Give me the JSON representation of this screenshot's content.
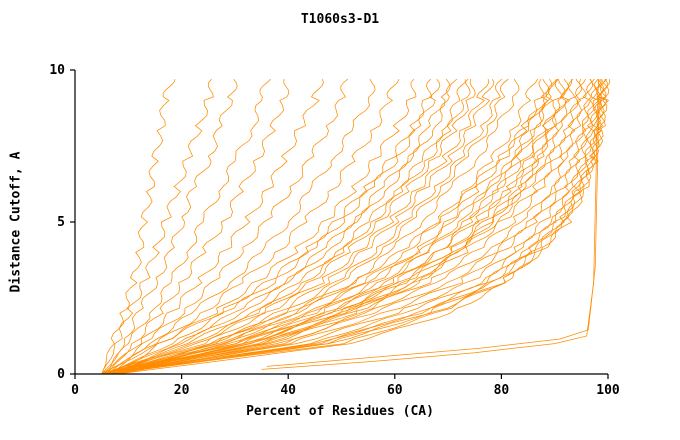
{
  "chart_data": {
    "type": "line",
    "title": "T1060s3-D1",
    "xlabel": "Percent of Residues (CA)",
    "ylabel": "Distance Cutoff, A",
    "xlim": [
      0,
      100
    ],
    "ylim": [
      0,
      10
    ],
    "xticks": [
      0,
      20,
      40,
      60,
      80,
      100
    ],
    "yticks": [
      0,
      5,
      10
    ],
    "grid": false,
    "legend": "none",
    "line_color": "#FF8C00",
    "axis_color": "#000000",
    "y_levels": [
      0,
      1,
      2,
      3,
      4,
      5,
      6,
      7,
      8,
      9,
      9.7
    ],
    "series_x": [
      [
        5,
        7,
        9,
        11,
        12,
        13,
        14,
        15,
        16,
        17,
        18
      ],
      [
        5,
        8,
        10,
        13,
        15,
        17,
        19,
        21,
        23,
        25,
        26
      ],
      [
        6,
        9,
        12,
        15,
        18,
        20,
        22,
        25,
        27,
        29,
        30
      ],
      [
        5,
        10,
        14,
        18,
        21,
        24,
        27,
        30,
        33,
        35,
        36
      ],
      [
        6,
        11,
        16,
        20,
        24,
        28,
        31,
        34,
        37,
        39,
        40
      ],
      [
        5,
        12,
        18,
        23,
        28,
        32,
        36,
        39,
        42,
        45,
        46
      ],
      [
        7,
        13,
        20,
        26,
        31,
        36,
        40,
        44,
        47,
        50,
        51
      ],
      [
        6,
        14,
        22,
        29,
        35,
        40,
        44,
        48,
        52,
        55,
        56
      ],
      [
        5,
        15,
        24,
        31,
        38,
        43,
        48,
        52,
        56,
        59,
        60
      ],
      [
        8,
        16,
        26,
        34,
        41,
        47,
        52,
        56,
        60,
        63,
        64
      ],
      [
        6,
        18,
        28,
        37,
        44,
        50,
        55,
        60,
        64,
        67,
        68
      ],
      [
        7,
        20,
        31,
        40,
        47,
        53,
        58,
        63,
        67,
        70,
        71
      ],
      [
        5,
        22,
        34,
        43,
        50,
        56,
        61,
        66,
        70,
        73,
        74
      ],
      [
        6,
        24,
        36,
        46,
        53,
        59,
        64,
        69,
        73,
        76,
        77
      ],
      [
        8,
        26,
        39,
        49,
        56,
        62,
        67,
        72,
        76,
        79,
        80
      ],
      [
        5,
        28,
        42,
        52,
        59,
        65,
        70,
        75,
        79,
        82,
        83
      ],
      [
        7,
        30,
        44,
        54,
        62,
        68,
        73,
        78,
        82,
        85,
        86
      ],
      [
        6,
        32,
        46,
        56,
        64,
        70,
        75,
        80,
        84,
        87,
        88
      ],
      [
        5,
        25,
        40,
        52,
        61,
        68,
        74,
        79,
        84,
        88,
        89
      ],
      [
        6,
        27,
        43,
        55,
        64,
        71,
        77,
        82,
        86,
        89,
        90
      ],
      [
        7,
        29,
        45,
        57,
        66,
        73,
        79,
        84,
        88,
        91,
        91.5
      ],
      [
        5,
        31,
        47,
        59,
        68,
        75,
        81,
        86,
        89,
        92,
        92.5
      ],
      [
        6,
        33,
        49,
        61,
        70,
        77,
        83,
        87,
        90,
        93,
        93.5
      ],
      [
        8,
        35,
        51,
        63,
        72,
        79,
        84,
        88,
        91,
        94,
        94.5
      ],
      [
        5,
        30,
        48,
        62,
        71,
        78,
        84,
        89,
        92,
        94.5,
        95
      ],
      [
        6,
        32,
        50,
        64,
        73,
        80,
        86,
        90,
        93,
        95,
        95.5
      ],
      [
        7,
        34,
        52,
        66,
        75,
        82,
        87,
        91,
        94,
        96,
        96.5
      ],
      [
        5,
        36,
        54,
        68,
        77,
        84,
        89,
        92,
        95,
        96.5,
        97
      ],
      [
        6,
        38,
        56,
        70,
        79,
        85,
        90,
        93,
        95.5,
        97,
        97.5
      ],
      [
        8,
        40,
        58,
        72,
        80,
        86,
        91,
        94,
        96,
        97.5,
        98
      ],
      [
        5,
        42,
        60,
        74,
        82,
        88,
        92,
        95,
        96.5,
        98,
        98.3
      ],
      [
        6,
        44,
        62,
        76,
        83,
        89,
        93,
        95.5,
        97,
        98.2,
        98.5
      ],
      [
        7,
        46,
        64,
        77,
        84,
        90,
        93.5,
        96,
        97.5,
        98.5,
        98.8
      ],
      [
        5,
        48,
        66,
        78,
        85,
        90.5,
        94,
        96.5,
        98,
        98.8,
        99
      ],
      [
        6,
        50,
        68,
        80,
        86,
        91,
        94.5,
        97,
        98.2,
        99,
        99.2
      ],
      [
        8,
        52,
        70,
        81,
        87,
        92,
        95,
        97.3,
        98.5,
        99.2,
        99.4
      ],
      [
        5,
        45,
        65,
        78,
        86,
        91.5,
        94.8,
        97,
        98.4,
        99.3,
        99.5
      ],
      [
        6,
        47,
        67,
        80,
        87,
        92.5,
        95.3,
        97.5,
        98.6,
        99.4,
        99.6
      ],
      [
        5,
        16,
        27,
        36,
        43,
        49,
        54,
        59,
        63,
        66,
        67
      ],
      [
        6,
        19,
        30,
        39,
        46,
        52,
        57,
        62,
        66,
        69,
        70
      ],
      [
        7,
        21,
        33,
        42,
        49,
        55,
        60,
        65,
        69,
        72,
        73
      ],
      [
        5,
        23,
        35,
        44,
        51,
        57,
        62,
        67,
        71,
        74,
        75
      ],
      [
        6,
        26,
        38,
        47,
        54,
        60,
        65,
        70,
        74,
        77,
        78
      ],
      [
        8,
        28,
        41,
        50,
        57,
        63,
        68,
        73,
        77,
        80,
        81
      ],
      [
        5,
        33,
        48,
        58,
        66,
        72,
        77,
        82,
        85,
        88,
        88.5
      ],
      [
        6,
        35,
        50,
        60,
        68,
        74,
        79,
        83,
        86,
        89,
        89.5
      ],
      [
        7,
        37,
        52,
        62,
        70,
        76,
        81,
        85,
        88,
        90.5,
        91
      ],
      [
        6,
        39,
        54,
        64,
        72,
        78,
        83,
        86.5,
        89.5,
        91.5,
        92
      ]
    ],
    "outlier_series": [
      [
        [
          35,
          0.15
        ],
        [
          55,
          0.4
        ],
        [
          75,
          0.7
        ],
        [
          90,
          1.0
        ],
        [
          96,
          1.25
        ],
        [
          97.3,
          3
        ],
        [
          97.7,
          6
        ],
        [
          98,
          8.5
        ],
        [
          98.2,
          9.7
        ]
      ],
      [
        [
          36,
          0.25
        ],
        [
          56,
          0.55
        ],
        [
          76,
          0.85
        ],
        [
          91,
          1.15
        ],
        [
          96.3,
          1.45
        ],
        [
          97.6,
          3.5
        ],
        [
          98,
          6.5
        ],
        [
          98.3,
          9.0
        ]
      ]
    ]
  }
}
